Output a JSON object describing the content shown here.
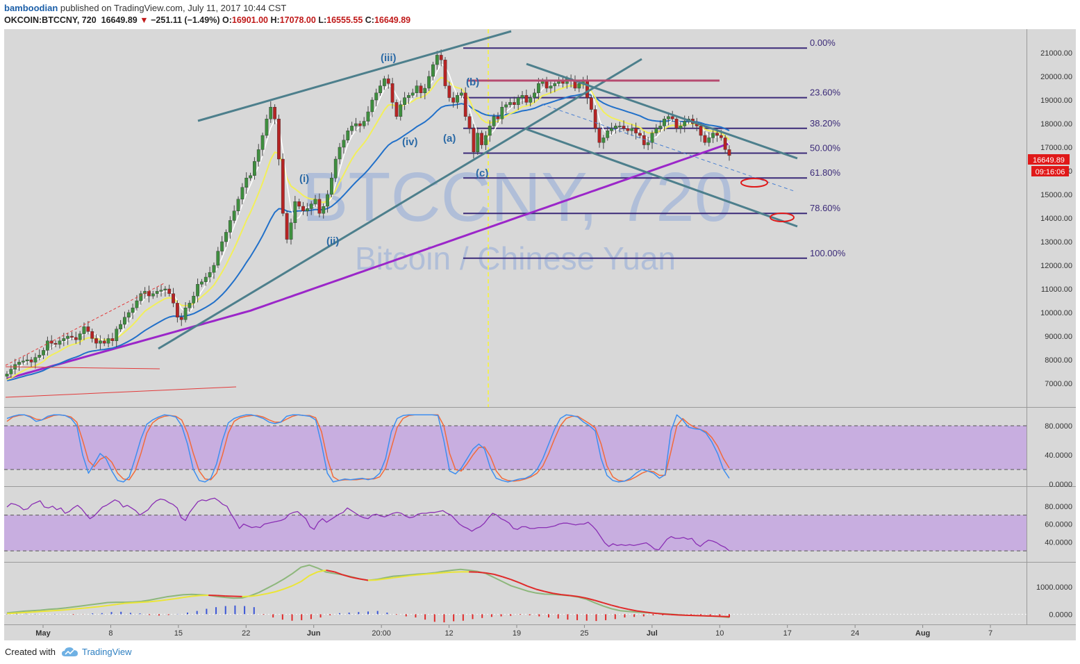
{
  "header": {
    "author": "bamboodian",
    "published": "published on TradingView.com, July 11, 2017 10:44 CST",
    "symbol": "OKCOIN:BTCCNY, 720",
    "last": "16649.89",
    "change": "−251.11 (−1.49%)",
    "o_label": "O:",
    "o_value": "16901.00",
    "h_label": "H:",
    "h_value": "17078.00",
    "l_label": "L:",
    "l_value": "16555.55",
    "c_label": "C:",
    "c_value": "16649.89"
  },
  "watermark": {
    "symbol": "BTCCNY, 720",
    "name": "Bitcoin / Chinese Yuan"
  },
  "footer": {
    "created_with": "Created with",
    "brand": "TradingView"
  },
  "colors": {
    "bg": "#d8d8d8",
    "up": "#3e8e3e",
    "down": "#b52424",
    "fib": "#3b2a78",
    "trend": "#4d7f8c",
    "sma_white": "#ffffff",
    "sma_yellow": "#f2ef5a",
    "sma_blue": "#2170c9",
    "sma_purple": "#9b26c9",
    "band": "#c8aee0",
    "stoch_k": "#3d8ef0",
    "stoch_d": "#f26a3a",
    "rsi": "#8a2fb4",
    "macd_fast": "#8db77b",
    "macd_signal": "#ebe536",
    "macd_red": "#e02a2a"
  },
  "chart_data": [
    {
      "type": "candlestick",
      "ylim": [
        6000,
        22000
      ],
      "y_ticks": [
        "21000.00",
        "20000.00",
        "19000.00",
        "18000.00",
        "17000.00",
        "16000.00",
        "15000.00",
        "14000.00",
        "13000.00",
        "12000.00",
        "11000.00",
        "10000.00",
        "9000.00",
        "8000.00",
        "7000.00"
      ],
      "x_ticks": [
        "May",
        "8",
        "15",
        "22",
        "Jun",
        "20:00",
        "12",
        "19",
        "25",
        "Jul",
        "10",
        "17",
        "24",
        "Aug",
        "7"
      ],
      "last_price_label": "16649.89",
      "countdown_label": "09:16:06",
      "fib_levels": [
        {
          "label": "0.00%",
          "value": 21200
        },
        {
          "label": "23.60%",
          "value": 19100
        },
        {
          "label": "38.20%",
          "value": 17800
        },
        {
          "label": "50.00%",
          "value": 16750
        },
        {
          "label": "61.80%",
          "value": 15700
        },
        {
          "label": "78.60%",
          "value": 14200
        },
        {
          "label": "100.00%",
          "value": 12300
        }
      ],
      "wave_labels": [
        "(iii)",
        "(i)",
        "(ii)",
        "(iv)",
        "(a)",
        "(b)",
        "(c)"
      ],
      "closes": [
        7400,
        7600,
        7800,
        7900,
        7950,
        8000,
        7900,
        8100,
        8200,
        8400,
        8800,
        8700,
        8650,
        8800,
        8900,
        9000,
        8950,
        8850,
        9100,
        9400,
        9200,
        8900,
        8700,
        8800,
        8700,
        8900,
        8800,
        9300,
        9500,
        9800,
        10000,
        10200,
        10500,
        10800,
        10900,
        10700,
        10800,
        10900,
        10950,
        11000,
        10800,
        10400,
        9800,
        9700,
        10200,
        10400,
        10700,
        11200,
        11300,
        11500,
        11700,
        12000,
        12600,
        13000,
        13400,
        13900,
        14300,
        14800,
        15300,
        15700,
        15800,
        16400,
        16900,
        17500,
        18200,
        18700,
        18200,
        16500,
        14200,
        13100,
        13800,
        14700,
        14500,
        14300,
        14400,
        14600,
        14800,
        14200,
        14500,
        15000,
        15700,
        16500,
        17000,
        17300,
        17700,
        17900,
        18000,
        17900,
        18100,
        18500,
        19000,
        19300,
        19600,
        19900,
        19700,
        18900,
        18300,
        18800,
        19100,
        19200,
        19300,
        19600,
        19300,
        19500,
        20000,
        20500,
        20900,
        20700,
        19600,
        19100,
        18900,
        19200,
        19300,
        18300,
        17800,
        16800,
        17600,
        17100,
        17500,
        17900,
        18300,
        18200,
        18700,
        18800,
        18900,
        18800,
        19100,
        19200,
        18900,
        19100,
        19300,
        19700,
        19800,
        19500,
        19600,
        19700,
        19800,
        19700,
        19900,
        19800,
        19500,
        19700,
        19800,
        19100,
        18600,
        17800,
        17200,
        17400,
        17700,
        17800,
        17900,
        17900,
        17800,
        17700,
        17800,
        17600,
        17500,
        17100,
        17200,
        17600,
        17800,
        17900,
        18200,
        18300,
        18200,
        17800,
        17900,
        18100,
        18200,
        18000,
        17900,
        17500,
        17200,
        17400,
        17600,
        17500,
        17400,
        16900,
        16650
      ]
    },
    {
      "type": "line",
      "name": "stochastic",
      "ylim": [
        0,
        100
      ],
      "y_ticks": [
        "80.0000",
        "40.0000",
        "0.0000"
      ],
      "band": [
        20,
        80
      ],
      "k": [
        90,
        93,
        95,
        95,
        92,
        86,
        88,
        93,
        95,
        95,
        94,
        90,
        80,
        40,
        15,
        28,
        42,
        35,
        18,
        5,
        3,
        10,
        35,
        62,
        82,
        88,
        92,
        95,
        94,
        92,
        80,
        55,
        20,
        5,
        3,
        8,
        28,
        60,
        84,
        90,
        93,
        95,
        95,
        93,
        90,
        85,
        83,
        85,
        93,
        95,
        95,
        94,
        93,
        88,
        55,
        15,
        3,
        5,
        7,
        6,
        7,
        8,
        6,
        8,
        15,
        35,
        72,
        90,
        94,
        95,
        95,
        95,
        95,
        95,
        94,
        60,
        18,
        14,
        22,
        35,
        48,
        55,
        48,
        22,
        8,
        5,
        3,
        5,
        7,
        8,
        12,
        20,
        35,
        55,
        75,
        90,
        95,
        94,
        92,
        85,
        80,
        73,
        35,
        12,
        5,
        3,
        4,
        8,
        15,
        20,
        18,
        15,
        8,
        13,
        73,
        95,
        88,
        78,
        76,
        75,
        70,
        58,
        42,
        20,
        8
      ],
      "d": [
        86,
        92,
        94,
        95,
        93,
        89,
        88,
        91,
        94,
        95,
        94,
        92,
        85,
        60,
        32,
        24,
        34,
        38,
        30,
        15,
        7,
        6,
        18,
        42,
        70,
        84,
        90,
        93,
        94,
        93,
        88,
        70,
        42,
        18,
        7,
        6,
        15,
        40,
        70,
        86,
        91,
        93,
        94,
        94,
        92,
        88,
        85,
        85,
        89,
        93,
        95,
        94,
        94,
        91,
        72,
        35,
        10,
        5,
        6,
        6,
        6,
        7,
        7,
        7,
        10,
        22,
        50,
        78,
        90,
        94,
        95,
        95,
        95,
        95,
        95,
        80,
        42,
        20,
        18,
        28,
        40,
        50,
        51,
        38,
        18,
        8,
        5,
        4,
        5,
        7,
        10,
        15,
        25,
        42,
        62,
        80,
        90,
        93,
        93,
        88,
        83,
        77,
        55,
        25,
        10,
        5,
        4,
        6,
        10,
        15,
        18,
        17,
        12,
        12,
        45,
        80,
        90,
        83,
        78,
        75,
        72,
        64,
        52,
        35,
        22
      ]
    },
    {
      "type": "line",
      "name": "rsi",
      "ylim": [
        20,
        100
      ],
      "y_ticks": [
        "80.0000",
        "60.0000",
        "40.0000"
      ],
      "band": [
        30,
        70
      ],
      "values": [
        79,
        83,
        82,
        80,
        76,
        77,
        82,
        84,
        86,
        79,
        78,
        80,
        76,
        78,
        72,
        74,
        78,
        81,
        77,
        71,
        66,
        69,
        74,
        79,
        81,
        84,
        87,
        85,
        79,
        81,
        78,
        75,
        70,
        73,
        76,
        82,
        86,
        88,
        87,
        84,
        82,
        78,
        67,
        64,
        73,
        79,
        85,
        87,
        86,
        88,
        89,
        86,
        82,
        80,
        71,
        64,
        55,
        60,
        58,
        56,
        57,
        56,
        60,
        61,
        62,
        63,
        64,
        66,
        71,
        73,
        74,
        70,
        66,
        57,
        54,
        62,
        66,
        62,
        65,
        68,
        71,
        73,
        78,
        75,
        72,
        69,
        67,
        66,
        70,
        71,
        69,
        68,
        70,
        72,
        73,
        72,
        69,
        67,
        68,
        71,
        72,
        72,
        73,
        73,
        74,
        75,
        72,
        70,
        65,
        60,
        57,
        55,
        52,
        55,
        57,
        61,
        67,
        72,
        70,
        66,
        64,
        61,
        55,
        54,
        57,
        57,
        55,
        55,
        56,
        56,
        56,
        57,
        58,
        60,
        61,
        61,
        60,
        59,
        60,
        60,
        62,
        58,
        53,
        46,
        39,
        35,
        38,
        36,
        37,
        36,
        37,
        36,
        37,
        38,
        39,
        36,
        32,
        31,
        37,
        43,
        46,
        44,
        44,
        45,
        43,
        44,
        38,
        35,
        39,
        42,
        41,
        39,
        36,
        34,
        30
      ]
    },
    {
      "type": "line",
      "name": "macd",
      "ylim": [
        -350,
        1850
      ],
      "y_ticks": [
        "1000.0000",
        "0.0000"
      ],
      "fast": [
        50,
        80,
        110,
        130,
        150,
        180,
        200,
        230,
        270,
        310,
        350,
        390,
        430,
        440,
        440,
        450,
        470,
        520,
        580,
        640,
        680,
        720,
        730,
        720,
        700,
        650,
        620,
        590,
        600,
        680,
        800,
        960,
        1120,
        1300,
        1500,
        1730,
        1810,
        1700,
        1550,
        1500,
        1450,
        1380,
        1300,
        1250,
        1280,
        1340,
        1400,
        1420,
        1450,
        1480,
        1500,
        1530,
        1580,
        1620,
        1650,
        1620,
        1580,
        1500,
        1350,
        1200,
        1050,
        950,
        850,
        780,
        740,
        730,
        710,
        680,
        630,
        550,
        420,
        300,
        200,
        130,
        100,
        80,
        60,
        40,
        20,
        0,
        -20,
        -40,
        -50,
        -60,
        -70,
        -90,
        -120
      ],
      "signal": [
        20,
        40,
        60,
        80,
        100,
        120,
        140,
        160,
        190,
        220,
        250,
        280,
        320,
        360,
        400,
        420,
        440,
        460,
        490,
        530,
        570,
        620,
        660,
        690,
        700,
        690,
        670,
        660,
        650,
        660,
        700,
        760,
        830,
        930,
        1050,
        1200,
        1420,
        1560,
        1620,
        1560,
        1450,
        1360,
        1300,
        1250,
        1260,
        1300,
        1340,
        1380,
        1420,
        1450,
        1480,
        1500,
        1530,
        1550,
        1560,
        1560,
        1550,
        1520,
        1470,
        1380,
        1280,
        1160,
        1030,
        920,
        840,
        770,
        720,
        690,
        650,
        590,
        510,
        420,
        330,
        250,
        180,
        120,
        80,
        40,
        10,
        -10,
        -30,
        -40,
        -50,
        -60,
        -70,
        -80,
        -90
      ],
      "histogram": [
        10,
        20,
        15,
        10,
        5,
        10,
        0,
        -20,
        -5,
        30,
        40,
        80,
        90,
        50,
        30,
        -30,
        -50,
        -30,
        10,
        60,
        120,
        200,
        260,
        300,
        320,
        300,
        260,
        -20,
        -120,
        -200,
        -240,
        -220,
        -180,
        -120,
        -40,
        40,
        60,
        80,
        100,
        120,
        60,
        -20,
        -80,
        -120,
        -200,
        -280,
        -300,
        -260,
        -240,
        -180,
        -140,
        -100,
        -80,
        -60,
        -20,
        -40,
        -80,
        -120,
        -160,
        -200,
        -220,
        -240,
        -250,
        -220,
        -180,
        -120,
        -100,
        -80,
        -40,
        -40,
        -40,
        -30,
        -40,
        -60,
        -80,
        -100,
        -120
      ]
    }
  ]
}
